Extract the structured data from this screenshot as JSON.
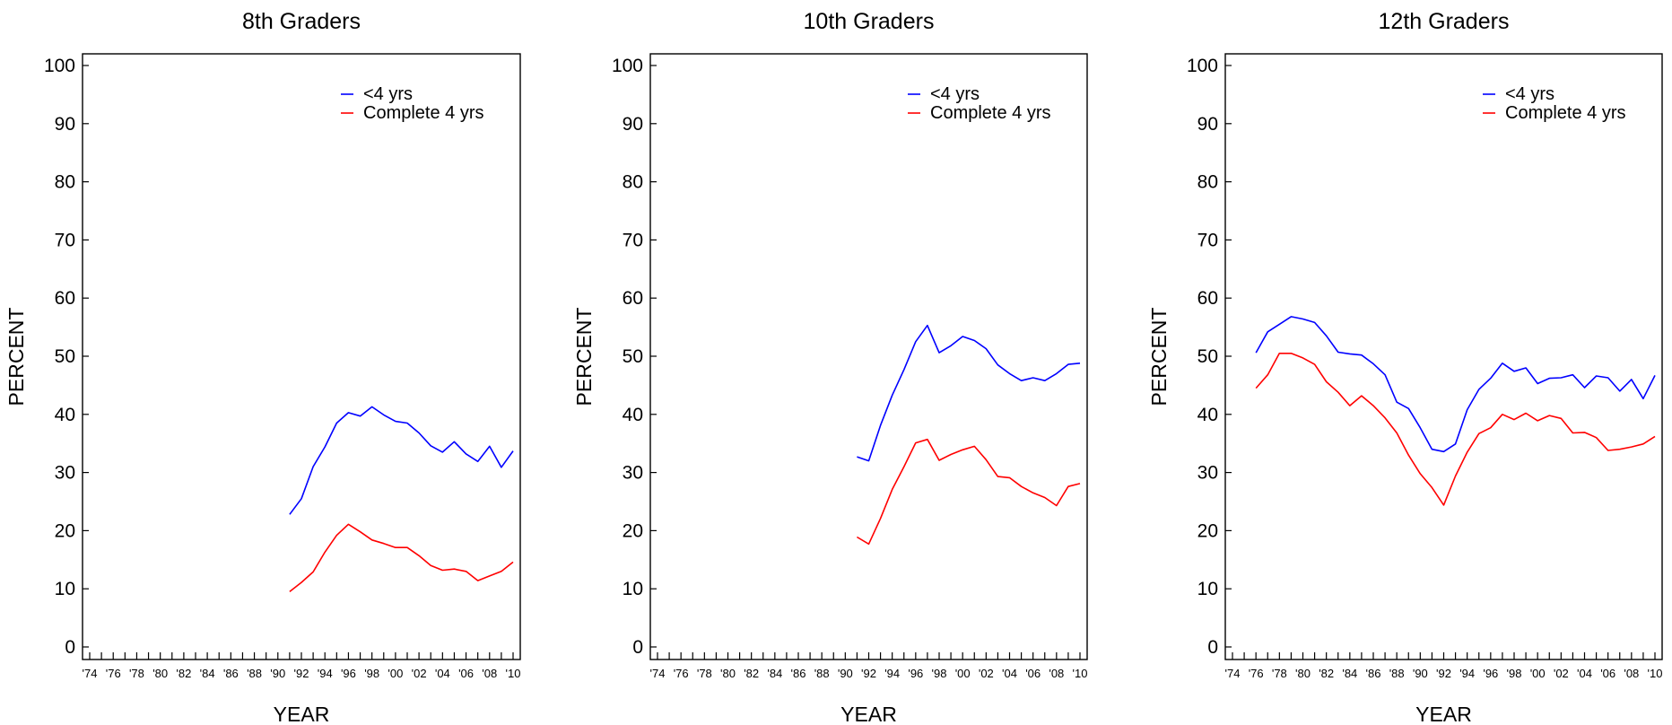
{
  "chart_data": [
    {
      "type": "line",
      "title": "8th Graders",
      "xlabel": "YEAR",
      "ylabel": "PERCENT",
      "xlim": [
        1974,
        2010
      ],
      "ylim": [
        0,
        100
      ],
      "yticks": [
        0,
        10,
        20,
        30,
        40,
        50,
        60,
        70,
        80,
        90,
        100
      ],
      "xtick_labels": [
        "'74",
        "'76",
        "'78",
        "'80",
        "'82",
        "'84",
        "'86",
        "'88",
        "'90",
        "'92",
        "'94",
        "'96",
        "'98",
        "'00",
        "'02",
        "'04",
        "'06",
        "'08",
        "'10"
      ],
      "legend_position": "top-right",
      "series": [
        {
          "name": "<4 yrs",
          "color": "#0000ff",
          "x": [
            1991,
            1992,
            1993,
            1994,
            1995,
            1996,
            1997,
            1998,
            1999,
            2000,
            2001,
            2002,
            2003,
            2004,
            2005,
            2006,
            2007,
            2008,
            2009,
            2010
          ],
          "y": [
            22.8,
            25.5,
            31.0,
            34.4,
            38.5,
            40.3,
            39.7,
            41.3,
            39.9,
            38.8,
            38.5,
            36.8,
            34.6,
            33.5,
            35.3,
            33.2,
            31.9,
            34.5,
            30.9,
            33.7
          ]
        },
        {
          "name": "Complete 4 yrs",
          "color": "#ff0000",
          "x": [
            1991,
            1992,
            1993,
            1994,
            1995,
            1996,
            1997,
            1998,
            1999,
            2000,
            2001,
            2002,
            2003,
            2004,
            2005,
            2006,
            2007,
            2008,
            2009,
            2010
          ],
          "y": [
            9.5,
            11.1,
            12.9,
            16.3,
            19.2,
            21.1,
            19.8,
            18.4,
            17.8,
            17.1,
            17.1,
            15.7,
            14.0,
            13.2,
            13.4,
            13.0,
            11.4,
            12.2,
            13.0,
            14.6
          ]
        }
      ]
    },
    {
      "type": "line",
      "title": "10th Graders",
      "xlabel": "YEAR",
      "ylabel": "PERCENT",
      "xlim": [
        1974,
        2010
      ],
      "ylim": [
        0,
        100
      ],
      "yticks": [
        0,
        10,
        20,
        30,
        40,
        50,
        60,
        70,
        80,
        90,
        100
      ],
      "xtick_labels": [
        "'74",
        "'76",
        "'78",
        "'80",
        "'82",
        "'84",
        "'86",
        "'88",
        "'90",
        "'92",
        "'94",
        "'96",
        "'98",
        "'00",
        "'02",
        "'04",
        "'06",
        "'08",
        "'10"
      ],
      "legend_position": "top-right",
      "series": [
        {
          "name": "<4 yrs",
          "color": "#0000ff",
          "x": [
            1991,
            1992,
            1993,
            1994,
            1995,
            1996,
            1997,
            1998,
            1999,
            2000,
            2001,
            2002,
            2003,
            2004,
            2005,
            2006,
            2007,
            2008,
            2009,
            2010
          ],
          "y": [
            32.7,
            32.0,
            38.1,
            43.3,
            47.7,
            52.5,
            55.3,
            50.6,
            51.8,
            53.4,
            52.7,
            51.3,
            48.5,
            47.0,
            45.8,
            46.3,
            45.8,
            47.0,
            48.6,
            48.8
          ]
        },
        {
          "name": "Complete 4 yrs",
          "color": "#ff0000",
          "x": [
            1991,
            1992,
            1993,
            1994,
            1995,
            1996,
            1997,
            1998,
            1999,
            2000,
            2001,
            2002,
            2003,
            2004,
            2005,
            2006,
            2007,
            2008,
            2009,
            2010
          ],
          "y": [
            18.9,
            17.7,
            22.1,
            27.1,
            31.0,
            35.1,
            35.7,
            32.1,
            33.1,
            33.9,
            34.5,
            32.2,
            29.3,
            29.1,
            27.6,
            26.5,
            25.7,
            24.3,
            27.6,
            28.1
          ]
        }
      ]
    },
    {
      "type": "line",
      "title": "12th Graders",
      "xlabel": "YEAR",
      "ylabel": "PERCENT",
      "xlim": [
        1974,
        2010
      ],
      "ylim": [
        0,
        100
      ],
      "yticks": [
        0,
        10,
        20,
        30,
        40,
        50,
        60,
        70,
        80,
        90,
        100
      ],
      "xtick_labels": [
        "'74",
        "'76",
        "'78",
        "'80",
        "'82",
        "'84",
        "'86",
        "'88",
        "'90",
        "'92",
        "'94",
        "'96",
        "'98",
        "'00",
        "'02",
        "'04",
        "'06",
        "'08",
        "'10"
      ],
      "legend_position": "top-right",
      "series": [
        {
          "name": "<4 yrs",
          "color": "#0000ff",
          "x": [
            1976,
            1977,
            1978,
            1979,
            1980,
            1981,
            1982,
            1983,
            1984,
            1985,
            1986,
            1987,
            1988,
            1989,
            1990,
            1991,
            1992,
            1993,
            1994,
            1995,
            1996,
            1997,
            1998,
            1999,
            2000,
            2001,
            2002,
            2003,
            2004,
            2005,
            2006,
            2007,
            2008,
            2009,
            2010
          ],
          "y": [
            50.6,
            54.2,
            55.5,
            56.8,
            56.4,
            55.8,
            53.5,
            50.7,
            50.4,
            50.2,
            48.7,
            46.8,
            42.1,
            41.0,
            37.7,
            34.0,
            33.6,
            34.9,
            40.8,
            44.3,
            46.2,
            48.8,
            47.4,
            48.0,
            45.3,
            46.2,
            46.3,
            46.8,
            44.6,
            46.6,
            46.3,
            44.0,
            46.0,
            42.7,
            46.7
          ]
        },
        {
          "name": "Complete 4 yrs",
          "color": "#ff0000",
          "x": [
            1976,
            1977,
            1978,
            1979,
            1980,
            1981,
            1982,
            1983,
            1984,
            1985,
            1986,
            1987,
            1988,
            1989,
            1990,
            1991,
            1992,
            1993,
            1994,
            1995,
            1996,
            1997,
            1998,
            1999,
            2000,
            2001,
            2002,
            2003,
            2004,
            2005,
            2006,
            2007,
            2008,
            2009,
            2010
          ],
          "y": [
            44.5,
            46.8,
            50.5,
            50.5,
            49.7,
            48.6,
            45.6,
            43.8,
            41.5,
            43.2,
            41.5,
            39.4,
            36.8,
            33.0,
            29.8,
            27.4,
            24.4,
            29.4,
            33.5,
            36.7,
            37.7,
            40.0,
            39.1,
            40.2,
            38.9,
            39.8,
            39.3,
            36.8,
            36.9,
            36.0,
            33.8,
            34.0,
            34.4,
            34.9,
            36.2
          ]
        }
      ]
    }
  ]
}
